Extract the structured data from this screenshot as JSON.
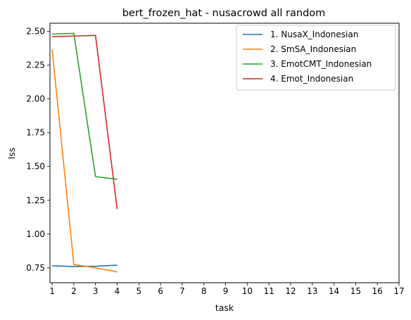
{
  "chart_data": {
    "type": "line",
    "title": "bert_frozen_hat - nusacrowd all random",
    "xlabel": "task",
    "ylabel": "lss",
    "xlim": [
      0.9,
      17
    ],
    "ylim": [
      0.64,
      2.56
    ],
    "x_ticks": [
      "1",
      "2",
      "3",
      "4",
      "5",
      "6",
      "7",
      "8",
      "9",
      "10",
      "11",
      "12",
      "13",
      "14",
      "15",
      "16",
      "17"
    ],
    "y_ticks": [
      "0.75",
      "1.00",
      "1.25",
      "1.50",
      "1.75",
      "2.00",
      "2.25",
      "2.50"
    ],
    "grid": false,
    "legend_position": "top-right",
    "series": [
      {
        "name": "1. NusaX_Indonesian",
        "color": "#1f77b4",
        "x": [
          1,
          2,
          3,
          4
        ],
        "y": [
          0.765,
          0.76,
          0.762,
          0.77
        ]
      },
      {
        "name": "2. SmSA_Indonesian",
        "color": "#ff7f0e",
        "x": [
          1,
          2,
          3,
          4
        ],
        "y": [
          2.365,
          0.775,
          0.75,
          0.72
        ]
      },
      {
        "name": "3. EmotCMT_Indonesian",
        "color": "#2ca02c",
        "x": [
          1,
          2,
          3,
          4
        ],
        "y": [
          2.48,
          2.485,
          1.425,
          1.405
        ]
      },
      {
        "name": "4. Emot_Indonesian",
        "color": "#d62728",
        "x": [
          1,
          2,
          3,
          4
        ],
        "y": [
          2.46,
          2.465,
          2.47,
          1.185
        ]
      }
    ]
  }
}
